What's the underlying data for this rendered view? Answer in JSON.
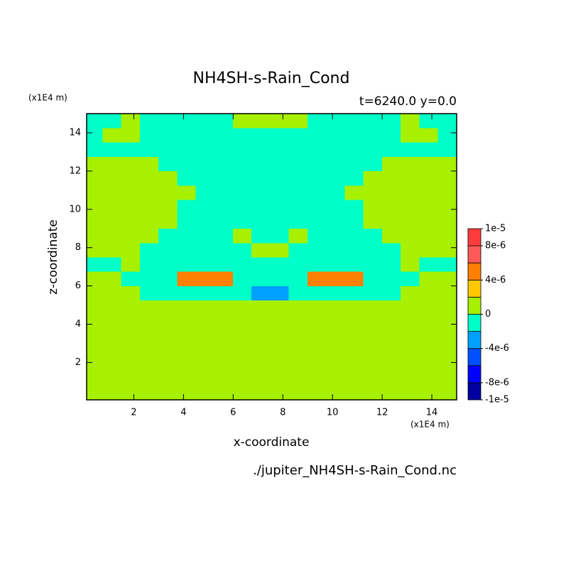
{
  "chart_data": {
    "type": "contour",
    "title": "NH4SH-s-Rain_Cond",
    "subtitle": "t=6240.0 y=0.0",
    "xlabel": "x-coordinate",
    "ylabel": "z-coordinate",
    "x_unit": "(x1E4 m)",
    "y_unit": "(x1E4 m)",
    "footer": "./jupiter_NH4SH-s-Rain_Cond.nc",
    "xlim": [
      0.1,
      15
    ],
    "ylim": [
      0.05,
      15
    ],
    "xticks": [
      2,
      4,
      6,
      8,
      10,
      12,
      14
    ],
    "yticks": [
      2,
      4,
      6,
      8,
      10,
      12,
      14
    ],
    "x": [
      0.375,
      1.125,
      1.875,
      2.625,
      3.375,
      4.125,
      4.875,
      5.625,
      6.375,
      7.125,
      7.875,
      8.625,
      9.375,
      10.125,
      10.875,
      11.625,
      12.375,
      13.125,
      13.875,
      14.625
    ],
    "y": [
      0.375,
      1.125,
      1.875,
      2.625,
      3.375,
      4.125,
      4.875,
      5.625,
      6.375,
      7.125,
      7.875,
      8.625,
      9.375,
      10.125,
      10.875,
      11.625,
      12.375,
      13.125,
      13.875,
      14.625
    ],
    "z": [
      [
        1e-06,
        1e-06,
        1e-06,
        1e-06,
        1e-06,
        1e-06,
        1e-06,
        1e-06,
        1e-06,
        1e-06,
        1e-06,
        1e-06,
        1e-06,
        1e-06,
        1e-06,
        1e-06,
        1e-06,
        1e-06,
        1e-06,
        1e-06
      ],
      [
        1e-06,
        1e-06,
        1e-06,
        1e-06,
        1e-06,
        1e-06,
        1e-06,
        1e-06,
        1e-06,
        1e-06,
        1e-06,
        1e-06,
        1e-06,
        1e-06,
        1e-06,
        1e-06,
        1e-06,
        1e-06,
        1e-06,
        1e-06
      ],
      [
        1e-06,
        1e-06,
        1e-06,
        1e-06,
        1e-06,
        1e-06,
        1e-06,
        1e-06,
        1e-06,
        1e-06,
        1e-06,
        1e-06,
        1e-06,
        1e-06,
        1e-06,
        1e-06,
        1e-06,
        1e-06,
        1e-06,
        1e-06
      ],
      [
        1e-06,
        1e-06,
        1e-06,
        1e-06,
        1e-06,
        1e-06,
        1e-06,
        1e-06,
        1e-06,
        1e-06,
        1e-06,
        1e-06,
        1e-06,
        1e-06,
        1e-06,
        1e-06,
        1e-06,
        1e-06,
        1e-06,
        1e-06
      ],
      [
        1e-06,
        1e-06,
        1e-06,
        1e-06,
        1e-06,
        1e-06,
        1e-06,
        1e-06,
        1e-06,
        1e-06,
        1e-06,
        1e-06,
        1e-06,
        1e-06,
        1e-06,
        1e-06,
        1e-06,
        1e-06,
        1e-06,
        1e-06
      ],
      [
        1e-06,
        1e-06,
        1e-06,
        1e-06,
        1e-06,
        1e-06,
        1e-06,
        1e-06,
        1e-06,
        1e-06,
        1e-06,
        1e-06,
        1e-06,
        1e-06,
        1e-06,
        1e-06,
        1e-06,
        1e-06,
        1e-06,
        1e-06
      ],
      [
        1e-06,
        1e-06,
        1e-06,
        1e-06,
        1e-06,
        1e-06,
        1e-06,
        1e-06,
        1e-06,
        1e-06,
        1e-06,
        1e-06,
        1e-06,
        1e-06,
        1e-06,
        1e-06,
        1e-06,
        1e-06,
        1e-06,
        1e-06
      ],
      [
        1e-06,
        1e-06,
        1e-06,
        -1e-06,
        -1e-06,
        -1e-06,
        -1e-06,
        -1e-06,
        -1e-06,
        -3e-06,
        -3e-06,
        -1e-06,
        -1e-06,
        -1e-06,
        -1e-06,
        -1e-06,
        -1e-06,
        1e-06,
        1e-06,
        1e-06
      ],
      [
        1e-06,
        1e-06,
        -1e-06,
        -1e-06,
        -1e-06,
        5e-06,
        5e-06,
        5e-06,
        -1e-06,
        -1e-06,
        -1e-06,
        -1e-06,
        5e-06,
        5e-06,
        5e-06,
        -1e-06,
        -1e-06,
        -1e-06,
        1e-06,
        1e-06
      ],
      [
        -1e-06,
        -1e-06,
        1e-06,
        -1e-06,
        -1e-06,
        -1e-06,
        -1e-06,
        -1e-06,
        -1e-06,
        -1e-06,
        -1e-06,
        -1e-06,
        -1e-06,
        -1e-06,
        -1e-06,
        -1e-06,
        -1e-06,
        1e-06,
        -1e-06,
        -1e-06
      ],
      [
        1e-06,
        1e-06,
        1e-06,
        -1e-06,
        -1e-06,
        -1e-06,
        -1e-06,
        -1e-06,
        -1e-06,
        1e-06,
        1e-06,
        -1e-06,
        -1e-06,
        -1e-06,
        -1e-06,
        -1e-06,
        -1e-06,
        1e-06,
        1e-06,
        1e-06
      ],
      [
        1e-06,
        1e-06,
        1e-06,
        1e-06,
        -1e-06,
        -1e-06,
        -1e-06,
        -1e-06,
        1e-06,
        -1e-06,
        -1e-06,
        1e-06,
        -1e-06,
        -1e-06,
        -1e-06,
        -1e-06,
        1e-06,
        1e-06,
        1e-06,
        1e-06
      ],
      [
        1e-06,
        1e-06,
        1e-06,
        1e-06,
        1e-06,
        -1e-06,
        -1e-06,
        -1e-06,
        -1e-06,
        -1e-06,
        -1e-06,
        -1e-06,
        -1e-06,
        -1e-06,
        -1e-06,
        1e-06,
        1e-06,
        1e-06,
        1e-06,
        1e-06
      ],
      [
        1e-06,
        1e-06,
        1e-06,
        1e-06,
        1e-06,
        -1e-06,
        -1e-06,
        -1e-06,
        -1e-06,
        -1e-06,
        -1e-06,
        -1e-06,
        -1e-06,
        -1e-06,
        -1e-06,
        1e-06,
        1e-06,
        1e-06,
        1e-06,
        1e-06
      ],
      [
        1e-06,
        1e-06,
        1e-06,
        1e-06,
        1e-06,
        1e-06,
        -1e-06,
        -1e-06,
        -1e-06,
        -1e-06,
        -1e-06,
        -1e-06,
        -1e-06,
        -1e-06,
        1e-06,
        1e-06,
        1e-06,
        1e-06,
        1e-06,
        1e-06
      ],
      [
        1e-06,
        1e-06,
        1e-06,
        1e-06,
        1e-06,
        -1e-06,
        -1e-06,
        -1e-06,
        -1e-06,
        -1e-06,
        -1e-06,
        -1e-06,
        -1e-06,
        -1e-06,
        -1e-06,
        1e-06,
        1e-06,
        1e-06,
        1e-06,
        1e-06
      ],
      [
        1e-06,
        1e-06,
        1e-06,
        1e-06,
        -1e-06,
        -1e-06,
        -1e-06,
        -1e-06,
        -1e-06,
        -1e-06,
        -1e-06,
        -1e-06,
        -1e-06,
        -1e-06,
        -1e-06,
        -1e-06,
        1e-06,
        1e-06,
        1e-06,
        1e-06
      ],
      [
        -1e-06,
        -1e-06,
        -1e-06,
        -1e-06,
        -1e-06,
        -1e-06,
        -1e-06,
        -1e-06,
        -1e-06,
        -1e-06,
        -1e-06,
        -1e-06,
        -1e-06,
        -1e-06,
        -1e-06,
        -1e-06,
        -1e-06,
        -1e-06,
        -1e-06,
        -1e-06
      ],
      [
        -1e-06,
        1e-06,
        1e-06,
        -1e-06,
        -1e-06,
        -1e-06,
        -1e-06,
        -1e-06,
        -1e-06,
        -1e-06,
        -1e-06,
        -1e-06,
        -1e-06,
        -1e-06,
        -1e-06,
        -1e-06,
        -1e-06,
        1e-06,
        1e-06,
        -1e-06
      ],
      [
        -1e-06,
        -1e-06,
        1e-06,
        -1e-06,
        -1e-06,
        -1e-06,
        -1e-06,
        -1e-06,
        1e-06,
        1e-06,
        1e-06,
        1e-06,
        -1e-06,
        -1e-06,
        -1e-06,
        -1e-06,
        -1e-06,
        1e-06,
        -1e-06,
        -1e-06
      ]
    ],
    "levels": [
      -1e-05,
      -8e-06,
      -6e-06,
      -4e-06,
      -2e-06,
      0,
      2e-06,
      4e-06,
      6e-06,
      8e-06,
      1e-05
    ],
    "colors": [
      "#0000a0",
      "#0000ff",
      "#0050ff",
      "#00a0ff",
      "#00ffc8",
      "#a6f000",
      "#ffc800",
      "#ff8000",
      "#ff5a5a",
      "#ff3c3c"
    ],
    "colorbar_ticks": [
      {
        "value": 1e-05,
        "label": "1e-5"
      },
      {
        "value": 8e-06,
        "label": "8e-6"
      },
      {
        "value": 4e-06,
        "label": "4e-6"
      },
      0,
      {
        "value": -4e-06,
        "label": "-4e-6"
      },
      {
        "value": -8e-06,
        "label": "-8e-6"
      },
      {
        "value": -1e-05,
        "label": "-1e-5"
      }
    ]
  }
}
